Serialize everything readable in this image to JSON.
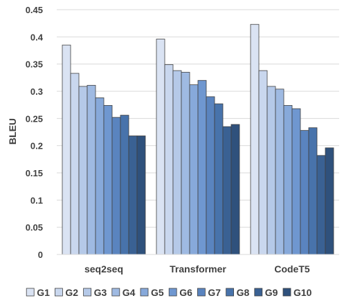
{
  "chart_data": {
    "type": "bar",
    "title": "",
    "xlabel": "",
    "ylabel": "BLEU",
    "ylim": [
      0,
      0.45
    ],
    "y_ticks": [
      "0",
      "0.05",
      "0.1",
      "0.15",
      "0.2",
      "0.25",
      "0.3",
      "0.35",
      "0.4",
      "0.45"
    ],
    "grid": true,
    "legend_position": "bottom",
    "categories": [
      "seq2seq",
      "Transformer",
      "CodeT5"
    ],
    "series": [
      {
        "name": "G1",
        "color": "#dae3f3",
        "values": [
          0.385,
          0.396,
          0.423
        ]
      },
      {
        "name": "G2",
        "color": "#c9d7ee",
        "values": [
          0.333,
          0.349,
          0.338
        ]
      },
      {
        "name": "G3",
        "color": "#b5c9e8",
        "values": [
          0.309,
          0.338,
          0.309
        ]
      },
      {
        "name": "G4",
        "color": "#9fbae2",
        "values": [
          0.311,
          0.335,
          0.304
        ]
      },
      {
        "name": "G5",
        "color": "#87a9da",
        "values": [
          0.288,
          0.312,
          0.274
        ]
      },
      {
        "name": "G6",
        "color": "#6f97d0",
        "values": [
          0.274,
          0.32,
          0.268
        ]
      },
      {
        "name": "G7",
        "color": "#5a84bf",
        "values": [
          0.252,
          0.29,
          0.228
        ]
      },
      {
        "name": "G8",
        "color": "#4873ab",
        "values": [
          0.256,
          0.277,
          0.233
        ]
      },
      {
        "name": "G9",
        "color": "#3a6193",
        "values": [
          0.218,
          0.235,
          0.182
        ]
      },
      {
        "name": "G10",
        "color": "#2f517c",
        "values": [
          0.218,
          0.239,
          0.196
        ]
      }
    ]
  }
}
